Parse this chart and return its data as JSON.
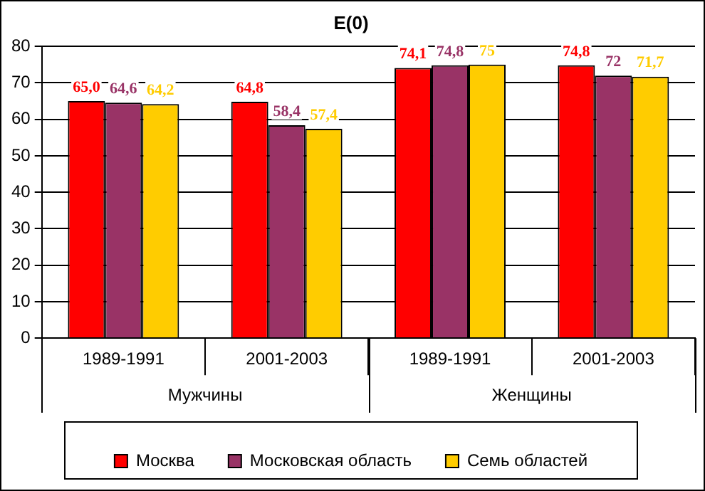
{
  "chart_data": {
    "type": "bar",
    "title": "E(0)",
    "categories": [
      "1989-1991",
      "2001-2003",
      "1989-1991",
      "2001-2003"
    ],
    "annotations": [
      "Мужчины",
      "Женщины"
    ],
    "series": [
      {
        "name": "Москва",
        "color": "#ff0000",
        "values": [
          65.0,
          64.8,
          74.1,
          74.8
        ],
        "value_labels": [
          "65,0",
          "64,8",
          "74,1",
          "74,8"
        ]
      },
      {
        "name": "Московская область",
        "color": "#993366",
        "values": [
          64.6,
          58.4,
          74.8,
          72
        ],
        "value_labels": [
          "64,6",
          "58,4",
          "74,8",
          "72"
        ]
      },
      {
        "name": "Семь областей",
        "color": "#ffcc00",
        "values": [
          64.2,
          57.4,
          75,
          71.7
        ],
        "value_labels": [
          "64,2",
          "57,4",
          "75",
          "71,7"
        ]
      }
    ],
    "ylim": [
      0,
      80
    ],
    "yticks": [
      0,
      10,
      20,
      30,
      40,
      50,
      60,
      70,
      80
    ],
    "grid": "y",
    "legend": "bottom"
  }
}
